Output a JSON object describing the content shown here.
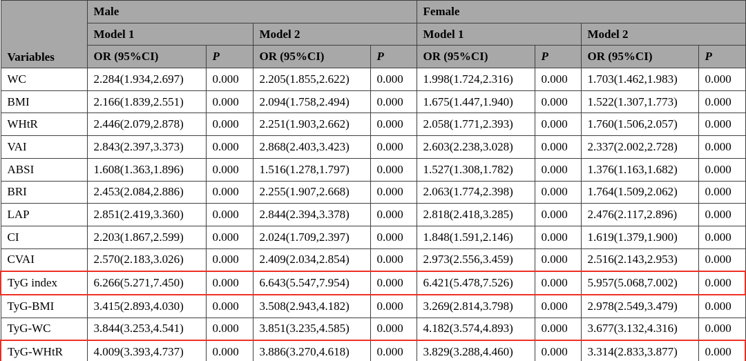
{
  "table": {
    "variables_label": "Variables",
    "or_header": "OR (95%CI)",
    "p_header": "P",
    "groups": [
      {
        "label": "Male",
        "models": [
          "Model 1",
          "Model 2"
        ]
      },
      {
        "label": "Female",
        "models": [
          "Model 1",
          "Model 2"
        ]
      }
    ],
    "highlighted_variables": [
      "TyG index",
      "TyG-WHtR"
    ],
    "colors": {
      "header_bg": "#a8a8a8",
      "border": "#3f3f3f",
      "highlight_box": "#ee2e24",
      "row_bg": "#ffffff",
      "text": "#000000"
    },
    "rows": [
      {
        "variable": "WC",
        "highlight": false,
        "values": [
          "2.284(1.934,2.697)",
          "0.000",
          "2.205(1.855,2.622)",
          "0.000",
          "1.998(1.724,2.316)",
          "0.000",
          "1.703(1.462,1.983)",
          "0.000"
        ]
      },
      {
        "variable": "BMI",
        "highlight": false,
        "values": [
          "2.166(1.839,2.551)",
          "0.000",
          "2.094(1.758,2.494)",
          "0.000",
          "1.675(1.447,1.940)",
          "0.000",
          "1.522(1.307,1.773)",
          "0.000"
        ]
      },
      {
        "variable": "WHtR",
        "highlight": false,
        "values": [
          "2.446(2.079,2.878)",
          "0.000",
          "2.251(1.903,2.662)",
          "0.000",
          "2.058(1.771,2.393)",
          "0.000",
          "1.760(1.506,2.057)",
          "0.000"
        ]
      },
      {
        "variable": "VAI",
        "highlight": false,
        "values": [
          "2.843(2.397,3.373)",
          "0.000",
          "2.868(2.403,3.423)",
          "0.000",
          "2.603(2.238,3.028)",
          "0.000",
          "2.337(2.002,2.728)",
          "0.000"
        ]
      },
      {
        "variable": "ABSI",
        "highlight": false,
        "values": [
          "1.608(1.363,1.896)",
          "0.000",
          "1.516(1.278,1.797)",
          "0.000",
          "1.527(1.308,1.782)",
          "0.000",
          "1.376(1.163,1.682)",
          "0.000"
        ]
      },
      {
        "variable": "BRI",
        "highlight": false,
        "values": [
          "2.453(2.084,2.886)",
          "0.000",
          "2.255(1.907,2.668)",
          "0.000",
          "2.063(1.774,2.398)",
          "0.000",
          "1.764(1.509,2.062)",
          "0.000"
        ]
      },
      {
        "variable": "LAP",
        "highlight": false,
        "values": [
          "2.851(2.419,3.360)",
          "0.000",
          "2.844(2.394,3.378)",
          "0.000",
          "2.818(2.418,3.285)",
          "0.000",
          "2.476(2.117,2.896)",
          "0.000"
        ]
      },
      {
        "variable": "CI",
        "highlight": false,
        "values": [
          "2.203(1.867,2.599)",
          "0.000",
          "2.024(1.709,2.397)",
          "0.000",
          "1.848(1.591,2.146)",
          "0.000",
          "1.619(1.379,1.900)",
          "0.000"
        ]
      },
      {
        "variable": "CVAI",
        "highlight": false,
        "values": [
          "2.570(2.183,3.026)",
          "0.000",
          "2.409(2.034,2.854)",
          "0.000",
          "2.973(2.556,3.459)",
          "0.000",
          "2.516(2.143,2.953)",
          "0.000"
        ]
      },
      {
        "variable": "TyG index",
        "highlight": true,
        "values": [
          "6.266(5.271,7.450)",
          "0.000",
          "6.643(5.547,7.954)",
          "0.000",
          "6.421(5.478,7.526)",
          "0.000",
          "5.957(5.068,7.002)",
          "0.000"
        ]
      },
      {
        "variable": "TyG-BMI",
        "highlight": false,
        "values": [
          "3.415(2.893,4.030)",
          "0.000",
          "3.508(2.943,4.182)",
          "0.000",
          "3.269(2.814,3.798)",
          "0.000",
          "2.978(2.549,3.479)",
          "0.000"
        ]
      },
      {
        "variable": "TyG-WC",
        "highlight": false,
        "values": [
          "3.844(3.253,4.541)",
          "0.000",
          "3.851(3.235,4.585)",
          "0.000",
          "4.182(3.574,4.893)",
          "0.000",
          "3.677(3.132,4.316)",
          "0.000"
        ]
      },
      {
        "variable": "TyG-WHtR",
        "highlight": true,
        "values": [
          "4.009(3.393,4.737)",
          "0.000",
          "3.886(3.270,4.618)",
          "0.000",
          "3.829(3.288,4.460)",
          "0.000",
          "3.314(2.833,3.877)",
          "0.000"
        ]
      }
    ]
  }
}
